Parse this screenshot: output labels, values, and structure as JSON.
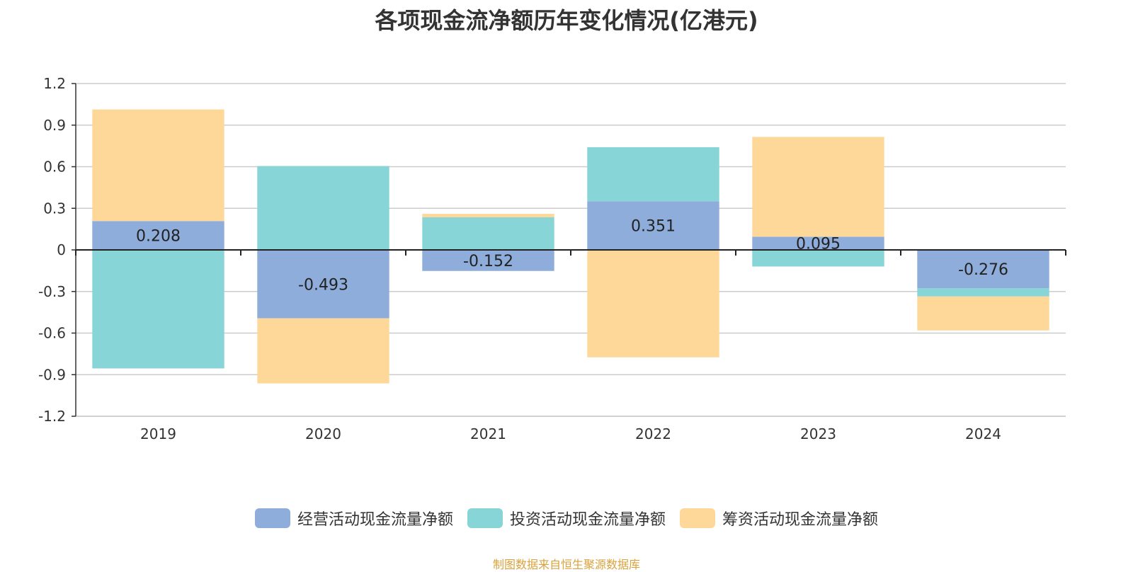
{
  "chart_data": {
    "type": "bar",
    "stacked": true,
    "title": "各项现金流净额历年变化情况(亿港元)",
    "categories": [
      "2019",
      "2020",
      "2021",
      "2022",
      "2023",
      "2024"
    ],
    "ylim": [
      -1.2,
      1.2
    ],
    "yticks": [
      "1.2",
      "0.9",
      "0.6",
      "0.3",
      "0",
      "-0.3",
      "-0.6",
      "-0.9",
      "-1.2"
    ],
    "grid": true,
    "legend_position": "bottom",
    "series": [
      {
        "name": "经营活动现金流量净额",
        "color": "#8eaddb",
        "values": [
          0.208,
          -0.493,
          -0.152,
          0.351,
          0.095,
          -0.276
        ],
        "labels": [
          "0.208",
          "-0.493",
          "-0.152",
          "0.351",
          "0.095",
          "-0.276"
        ]
      },
      {
        "name": "投资活动现金流量净额",
        "color": "#88d5d8",
        "values": [
          -0.855,
          0.605,
          0.235,
          0.39,
          -0.12,
          -0.06
        ]
      },
      {
        "name": "筹资活动现金流量净额",
        "color": "#fed898",
        "values": [
          0.805,
          -0.47,
          0.025,
          -0.775,
          0.72,
          -0.245
        ]
      }
    ]
  },
  "footer": {
    "source": "制图数据来自恒生聚源数据库"
  }
}
